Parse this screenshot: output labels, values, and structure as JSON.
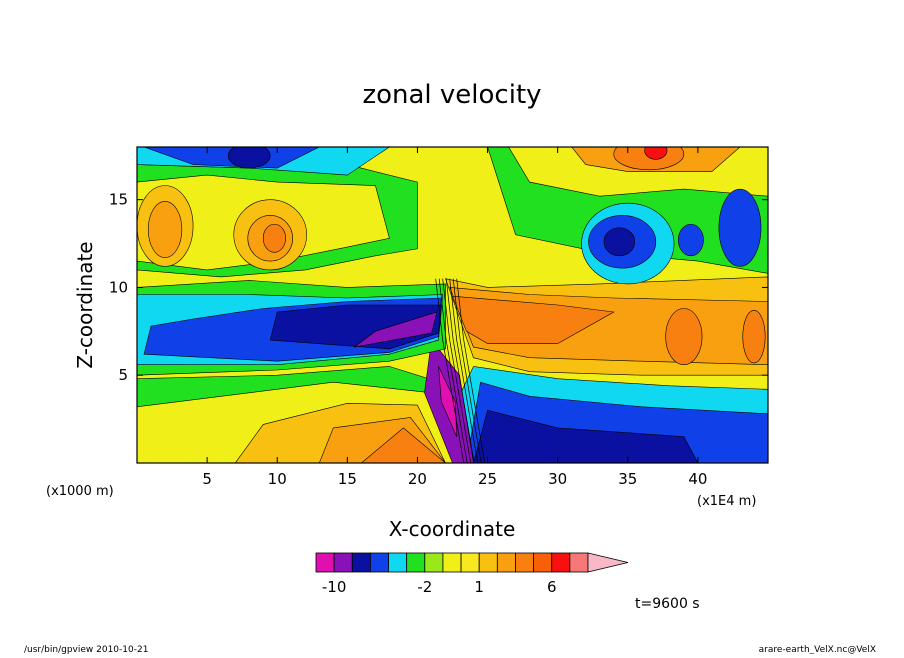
{
  "footer": {
    "left": "/usr/bin/gpview   2010-10-21",
    "right": "arare-earth_VelX.nc@VelX"
  },
  "time_label": "t=9600 s",
  "chart_data": {
    "type": "heatmap",
    "title": "zonal velocity",
    "xlabel": "X-coordinate",
    "ylabel": "Z-coordinate",
    "x_unit": "(x1E4 m)",
    "y_unit": "(x1000 m)",
    "xlim": [
      0,
      45
    ],
    "ylim": [
      0,
      18
    ],
    "xticks": [
      5,
      10,
      15,
      20,
      25,
      30,
      35,
      40
    ],
    "yticks": [
      5,
      10,
      15
    ],
    "colorbar": {
      "levels": [
        -12,
        -10,
        -8,
        -6,
        -4,
        -3,
        -2,
        -1,
        0,
        1,
        2,
        3,
        4,
        6,
        8,
        10,
        12
      ],
      "colors": [
        "#e010b0",
        "#8a10b8",
        "#0a10a0",
        "#1040e8",
        "#10d8f0",
        "#20e020",
        "#9ae81a",
        "#f0f018",
        "#f8e820",
        "#f8c010",
        "#f8a010",
        "#f88010",
        "#f86008",
        "#f81010",
        "#f87878",
        "#f8b8c8"
      ],
      "tick_labels": [
        {
          "value": -10,
          "label": "-10"
        },
        {
          "value": -2,
          "label": "-2"
        },
        {
          "value": 1,
          "label": "1"
        },
        {
          "value": 6,
          "label": "6"
        }
      ]
    }
  }
}
